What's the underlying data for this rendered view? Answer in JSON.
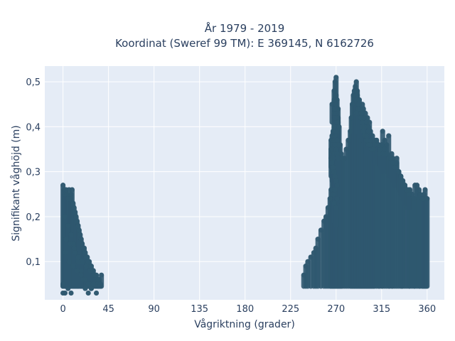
{
  "chart_data": {
    "type": "scatter",
    "title": "År 1979 - 2019",
    "subtitle": "Koordinat (Sweref 99 TM): E 369145, N 6162726",
    "xlabel": "Vågriktning (grader)",
    "ylabel": "Signifikant våghöjd (m)",
    "xlim": [
      -18,
      377
    ],
    "ylim": [
      0.015,
      0.535
    ],
    "xticks": [
      0,
      45,
      90,
      135,
      180,
      225,
      270,
      315,
      360
    ],
    "xtick_labels": [
      "0",
      "45",
      "90",
      "135",
      "180",
      "225",
      "270",
      "315",
      "360"
    ],
    "yticks": [
      0.1,
      0.2,
      0.3,
      0.4,
      0.5
    ],
    "ytick_labels": [
      "0,1",
      "0,2",
      "0,3",
      "0,4",
      "0,5"
    ],
    "grid": true,
    "legend": "none",
    "marker_color": "#2f586f",
    "plot_bg": "#e5ecf6",
    "series": [
      {
        "x": [
          0,
          0,
          0,
          1,
          2,
          3,
          4,
          5,
          6,
          7,
          8,
          9,
          10,
          11,
          12,
          13,
          14,
          15,
          16,
          17,
          18,
          19,
          20,
          21,
          22,
          23,
          24,
          25,
          26,
          27,
          28,
          29,
          30,
          31,
          32,
          33,
          34,
          35,
          36,
          37,
          38,
          2,
          5,
          8,
          10,
          12,
          15,
          18,
          20,
          22,
          25,
          28,
          2,
          6,
          10,
          14,
          18,
          22,
          26,
          30,
          34,
          37,
          3,
          7,
          11,
          15,
          19,
          23,
          27,
          31,
          35,
          2,
          5,
          8,
          25,
          28,
          33
        ],
        "y": [
          0.03,
          0.27,
          0.05,
          0.26,
          0.25,
          0.26,
          0.25,
          0.24,
          0.26,
          0.24,
          0.25,
          0.26,
          0.23,
          0.22,
          0.21,
          0.2,
          0.19,
          0.18,
          0.17,
          0.16,
          0.15,
          0.14,
          0.13,
          0.13,
          0.12,
          0.11,
          0.11,
          0.1,
          0.1,
          0.09,
          0.09,
          0.08,
          0.08,
          0.07,
          0.07,
          0.07,
          0.06,
          0.06,
          0.06,
          0.05,
          0.07,
          0.2,
          0.18,
          0.16,
          0.14,
          0.12,
          0.1,
          0.08,
          0.06,
          0.04,
          0.05,
          0.04,
          0.12,
          0.1,
          0.09,
          0.08,
          0.07,
          0.06,
          0.05,
          0.05,
          0.05,
          0.05,
          0.15,
          0.14,
          0.13,
          0.11,
          0.1,
          0.09,
          0.08,
          0.07,
          0.06,
          0.03,
          0.04,
          0.03,
          0.03,
          0.04,
          0.03
        ]
      },
      {
        "x": [
          238,
          240,
          242,
          245,
          248,
          250,
          252,
          255,
          258,
          260,
          262,
          264,
          265,
          266,
          267,
          268,
          269,
          270,
          271,
          272,
          273,
          274,
          275,
          276,
          278,
          280,
          282,
          284,
          285,
          286,
          287,
          288,
          289,
          290,
          291,
          292,
          293,
          294,
          295,
          296,
          297,
          298,
          299,
          300,
          301,
          302,
          303,
          304,
          305,
          306,
          307,
          308,
          310,
          312,
          313,
          315,
          316,
          318,
          320,
          322,
          323,
          325,
          326,
          328,
          330,
          332,
          334,
          335,
          336,
          338,
          340,
          342,
          343,
          345,
          347,
          348,
          350,
          352,
          353,
          355,
          356,
          357,
          358,
          359,
          360
        ],
        "y": [
          0.07,
          0.09,
          0.1,
          0.11,
          0.12,
          0.13,
          0.15,
          0.17,
          0.19,
          0.2,
          0.22,
          0.24,
          0.26,
          0.3,
          0.33,
          0.48,
          0.5,
          0.51,
          0.46,
          0.42,
          0.4,
          0.36,
          0.34,
          0.33,
          0.33,
          0.35,
          0.37,
          0.39,
          0.42,
          0.45,
          0.47,
          0.48,
          0.49,
          0.5,
          0.48,
          0.46,
          0.44,
          0.44,
          0.42,
          0.4,
          0.39,
          0.38,
          0.38,
          0.37,
          0.37,
          0.36,
          0.36,
          0.36,
          0.35,
          0.35,
          0.35,
          0.37,
          0.37,
          0.36,
          0.34,
          0.36,
          0.39,
          0.37,
          0.36,
          0.38,
          0.33,
          0.34,
          0.33,
          0.32,
          0.33,
          0.3,
          0.29,
          0.28,
          0.27,
          0.27,
          0.26,
          0.25,
          0.26,
          0.25,
          0.24,
          0.27,
          0.27,
          0.26,
          0.25,
          0.24,
          0.24,
          0.25,
          0.26,
          0.24,
          0.24
        ]
      },
      {
        "x": [
          265,
          266,
          267,
          268,
          269,
          270,
          271,
          272,
          265,
          266,
          267,
          268,
          269,
          270,
          271,
          272,
          265,
          266,
          267,
          268,
          269,
          270,
          271,
          272,
          266,
          268,
          270,
          272,
          266,
          267,
          268,
          269,
          270,
          271,
          267,
          269,
          271,
          268,
          270,
          268,
          269,
          270,
          272
        ],
        "y": [
          0.37,
          0.38,
          0.39,
          0.4,
          0.42,
          0.43,
          0.41,
          0.39,
          0.35,
          0.36,
          0.35,
          0.37,
          0.38,
          0.39,
          0.37,
          0.36,
          0.33,
          0.34,
          0.33,
          0.34,
          0.36,
          0.35,
          0.34,
          0.33,
          0.45,
          0.46,
          0.47,
          0.44,
          0.32,
          0.31,
          0.3,
          0.29,
          0.28,
          0.27,
          0.25,
          0.26,
          0.24,
          0.23,
          0.22,
          0.43,
          0.44,
          0.45,
          0.41
        ]
      },
      {
        "x": [
          290,
          291,
          292,
          293,
          294,
          295,
          296,
          297,
          298,
          299,
          300,
          301,
          302,
          303,
          304,
          290,
          292,
          294,
          296,
          298,
          300,
          302,
          304,
          306,
          308,
          310,
          312,
          314,
          316,
          318,
          320,
          322,
          324,
          326,
          328,
          330,
          332,
          334,
          336,
          338,
          340,
          342
        ],
        "y": [
          0.46,
          0.47,
          0.45,
          0.46,
          0.44,
          0.43,
          0.45,
          0.44,
          0.42,
          0.43,
          0.41,
          0.42,
          0.4,
          0.41,
          0.39,
          0.43,
          0.44,
          0.42,
          0.41,
          0.4,
          0.38,
          0.39,
          0.37,
          0.38,
          0.36,
          0.37,
          0.36,
          0.35,
          0.34,
          0.35,
          0.34,
          0.33,
          0.33,
          0.32,
          0.31,
          0.32,
          0.3,
          0.29,
          0.28,
          0.27,
          0.26,
          0.26
        ]
      }
    ]
  }
}
